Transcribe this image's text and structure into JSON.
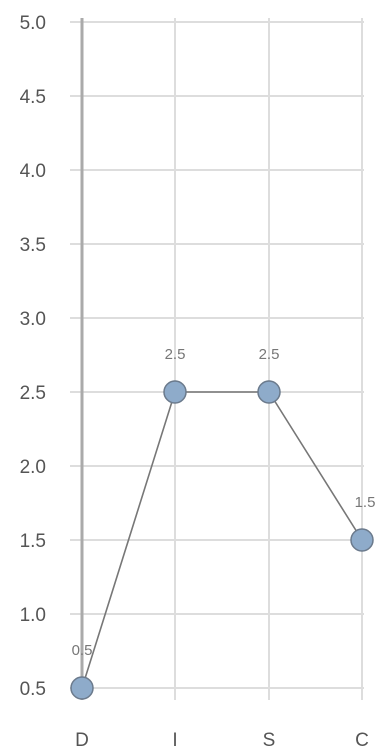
{
  "chart_data": {
    "type": "line",
    "categories": [
      "D",
      "I",
      "S",
      "C"
    ],
    "series": [
      {
        "values": [
          0.5,
          2.5,
          2.5,
          1.5
        ]
      }
    ],
    "data_labels": [
      "0.5",
      "2.5",
      "2.5",
      "1.5"
    ],
    "y_ticks": [
      "0.5",
      "1.0",
      "1.5",
      "2.0",
      "2.5",
      "3.0",
      "3.5",
      "4.0",
      "4.5",
      "5.0"
    ],
    "ylim": [
      0.5,
      5.0
    ],
    "grid": true,
    "legend": "none",
    "colors": {
      "point_fill": "#8eabca",
      "point_stroke": "#6b7a8c",
      "line": "#777777",
      "grid": "#dddddd",
      "axis": "#aaaaaa"
    }
  }
}
